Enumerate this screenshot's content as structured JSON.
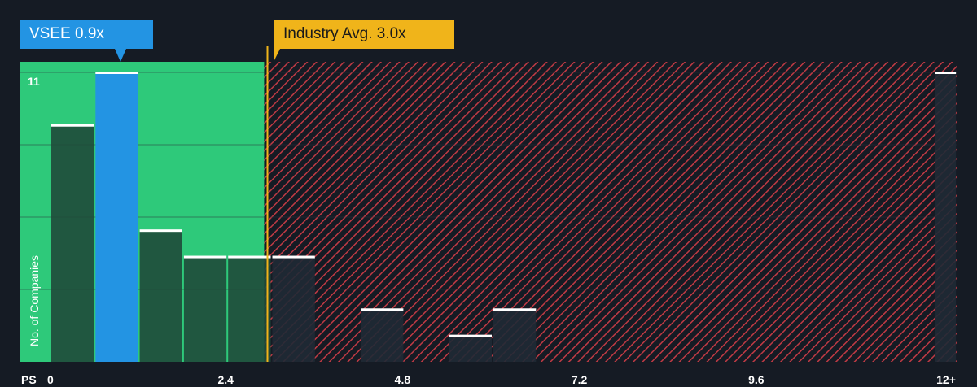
{
  "chart_data": {
    "type": "bar",
    "xlabel": "PS",
    "ylabel": "No. of Companies",
    "x_ticks": [
      "0",
      "2.4",
      "4.8",
      "7.2",
      "9.6",
      "12+"
    ],
    "x_tick_values": [
      0,
      2.4,
      4.8,
      7.2,
      9.6,
      12
    ],
    "xlim": [
      0,
      12.3
    ],
    "ylim": [
      0,
      11.4
    ],
    "y_tick_label": "11",
    "bins": [
      {
        "x0": 0.0,
        "x1": 0.6,
        "value": 9
      },
      {
        "x0": 0.6,
        "x1": 1.2,
        "value": 11,
        "highlight": true
      },
      {
        "x0": 1.2,
        "x1": 1.8,
        "value": 5
      },
      {
        "x0": 1.8,
        "x1": 2.4,
        "value": 4
      },
      {
        "x0": 2.4,
        "x1": 3.0,
        "value": 4
      },
      {
        "x0": 3.0,
        "x1": 3.6,
        "value": 4
      },
      {
        "x0": 4.2,
        "x1": 4.8,
        "value": 2
      },
      {
        "x0": 5.4,
        "x1": 6.0,
        "value": 1
      },
      {
        "x0": 6.0,
        "x1": 6.6,
        "value": 2
      },
      {
        "x0": 12.0,
        "x1": 12.3,
        "value": 11
      }
    ],
    "company": {
      "label": "VSEE 0.9x",
      "value": 0.9
    },
    "industry_avg": {
      "label": "Industry Avg. 3.0x",
      "value": 3.0
    },
    "fair_zone_max": 2.9,
    "colors": {
      "background": "#151b24",
      "fair_zone": "#2ec97a",
      "expensive_hatch": "#c03a44",
      "bar": "#1f4a3a",
      "bar_highlight": "#2394e3",
      "bar_top": "#ffffff",
      "industry_line": "#f0b41a",
      "gridline": "#2a313c",
      "text": "#ffffff"
    }
  }
}
